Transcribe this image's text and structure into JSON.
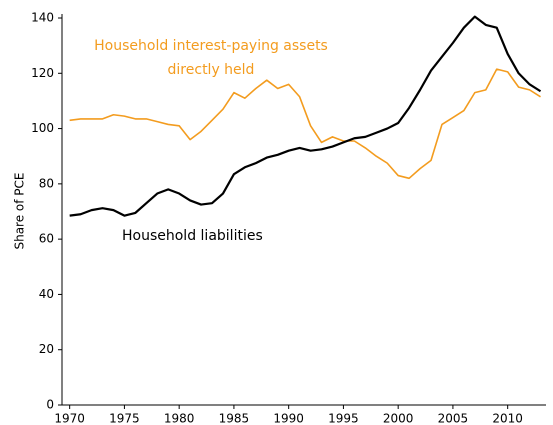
{
  "chart_data": {
    "type": "line",
    "ylabel": "Share of PCE",
    "x": [
      1970,
      1971,
      1972,
      1973,
      1974,
      1975,
      1976,
      1977,
      1978,
      1979,
      1980,
      1981,
      1982,
      1983,
      1984,
      1985,
      1986,
      1987,
      1988,
      1989,
      1990,
      1991,
      1992,
      1993,
      1994,
      1995,
      1996,
      1997,
      1998,
      1999,
      2000,
      2001,
      2002,
      2003,
      2004,
      2005,
      2006,
      2007,
      2008,
      2009,
      2010,
      2011,
      2012,
      2013
    ],
    "series": [
      {
        "color": "#f39c1f",
        "values": [
          103,
          103.5,
          103.5,
          103.5,
          105,
          104.5,
          103.5,
          103.5,
          102.5,
          101.5,
          101,
          96,
          99,
          103,
          107,
          113,
          111,
          114.5,
          117.5,
          114.5,
          116,
          111.5,
          101,
          95,
          97,
          95.5,
          95.5,
          93,
          90,
          87.5,
          83,
          82,
          85.5,
          88.5,
          101.5,
          104,
          106.5,
          113,
          114,
          121.5,
          120.5,
          115,
          114,
          111.5
        ]
      },
      {
        "color": "#000000",
        "values": [
          68.5,
          69,
          70.5,
          71.2,
          70.5,
          68.5,
          69.5,
          73,
          76.5,
          78,
          76.5,
          74,
          72.5,
          73,
          76.5,
          83.5,
          86,
          87.5,
          89.5,
          90.5,
          92,
          93,
          92,
          92.5,
          93.5,
          95,
          96.5,
          97,
          98.5,
          100,
          102,
          107.5,
          114,
          121,
          126,
          131,
          136.5,
          140.5,
          137.5,
          136.5,
          127,
          120,
          116,
          113.5
        ]
      }
    ],
    "annotations": [
      "Household interest-paying assets",
      "directly held",
      "Household liabilities"
    ],
    "xlim": [
      1969.3,
      2013.5
    ],
    "xticks": [
      1970,
      1975,
      1980,
      1985,
      1990,
      1995,
      2000,
      2005,
      2010
    ],
    "ylim": [
      0,
      140
    ],
    "yticks": [
      0,
      20,
      40,
      60,
      80,
      100,
      120,
      140
    ]
  }
}
